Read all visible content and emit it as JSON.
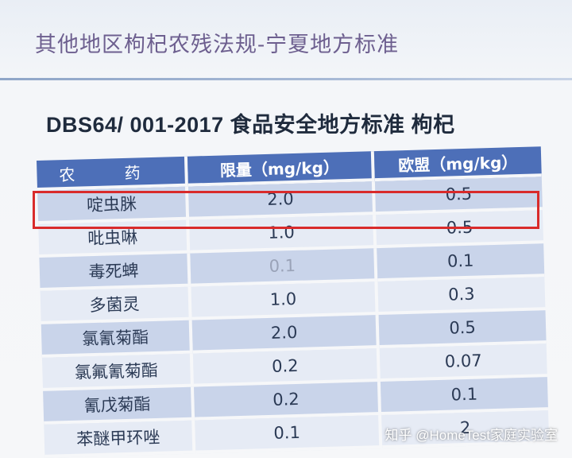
{
  "slide": {
    "title": "其他地区枸杞农残法规-宁夏地方标准",
    "subtitle": "DBS64/ 001-2017 食品安全地方标准 枸杞"
  },
  "table": {
    "headers": [
      "农 药",
      "限量（mg/kg）",
      "欧盟（mg/kg）"
    ],
    "rows": [
      [
        "啶虫脒",
        "2.0",
        "0.5"
      ],
      [
        "吡虫啉",
        "1.0",
        "0.5"
      ],
      [
        "毒死蜱",
        "0.1",
        "0.1"
      ],
      [
        "多菌灵",
        "1.0",
        "0.3"
      ],
      [
        "氯氰菊酯",
        "2.0",
        "0.5"
      ],
      [
        "氯氟氰菊酯",
        "0.2",
        "0.07"
      ],
      [
        "氰戊菊酯",
        "0.2",
        "0.1"
      ],
      [
        "苯醚甲环唑",
        "0.1",
        "2"
      ]
    ]
  },
  "colors": {
    "header_bg": "#4d6fb8",
    "row_dark": "#c9d4ea",
    "row_light": "#e6ebf5",
    "highlight": "#d92b2b",
    "title": "#6d5f8f"
  },
  "watermark": "知乎 @HomeTest家庭实验室"
}
